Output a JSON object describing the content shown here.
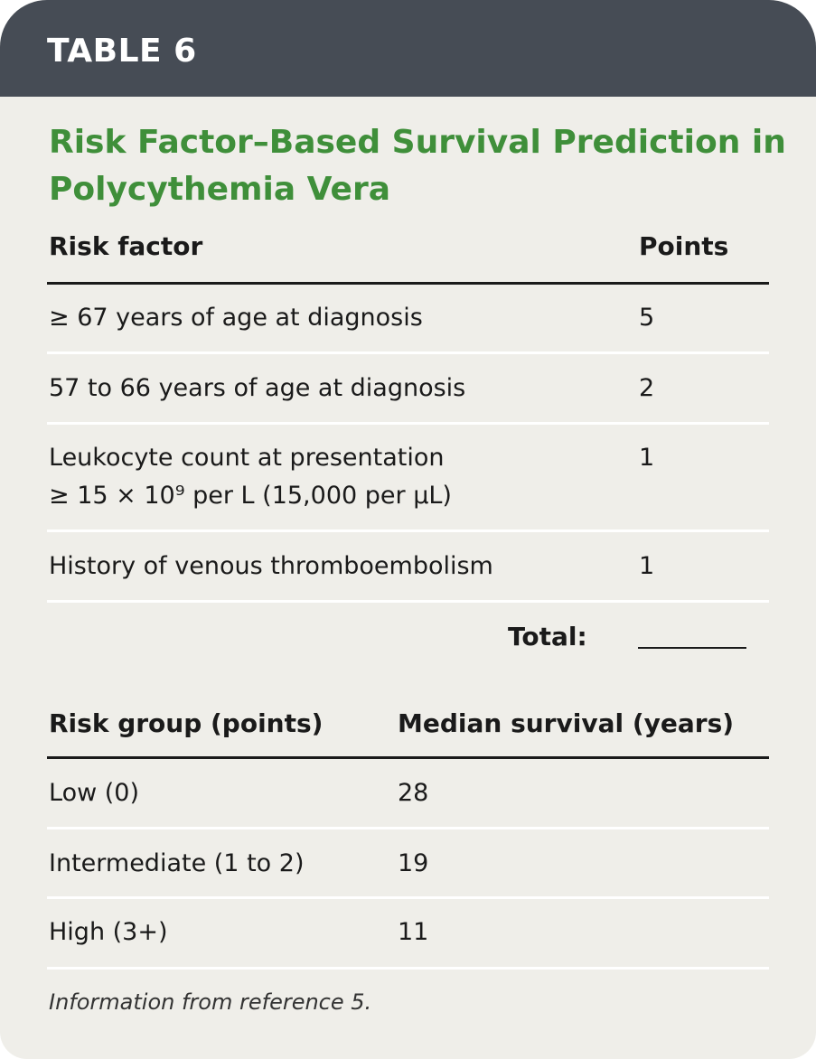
{
  "header": {
    "label": "TABLE 6"
  },
  "title": "Risk Factor–Based Survival Prediction in Polycythemia Vera",
  "risk_table": {
    "columns": [
      "Risk factor",
      "Points"
    ],
    "rows": [
      {
        "factor": "≥ 67 years of age at diagnosis",
        "points": "5"
      },
      {
        "factor": "57 to 66 years of age at diagnosis",
        "points": "2"
      },
      {
        "factor_line1": "Leukocyte count at presentation",
        "factor_line2": "≥ 15 × 10⁹ per L (15,000 per µL)",
        "points": "1"
      },
      {
        "factor": "History of venous thromboembolism",
        "points": "1"
      }
    ],
    "total_label": "Total:"
  },
  "survival_table": {
    "columns": [
      "Risk group (points)",
      "Median survival (years)"
    ],
    "rows": [
      {
        "group": "Low (0)",
        "survival": "28"
      },
      {
        "group": "Intermediate (1 to 2)",
        "survival": "19"
      },
      {
        "group": "High (3+)",
        "survival": "11"
      }
    ]
  },
  "footnote": "Information from reference 5.",
  "colors": {
    "header_bg": "#464c55",
    "title_green": "#3f8f3a",
    "background": "#efeee9"
  }
}
